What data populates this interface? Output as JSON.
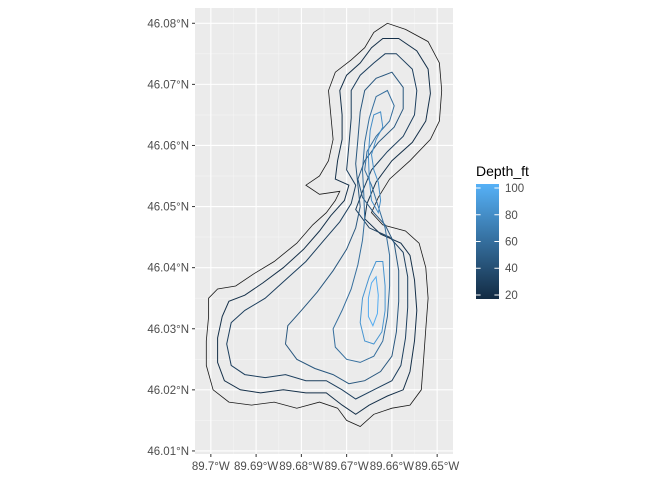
{
  "chart_data": {
    "type": "contour-map",
    "xlim": [
      -89.7035,
      -89.6465
    ],
    "ylim": [
      46.0095,
      46.0825
    ],
    "x_ticks": [
      {
        "value": -89.7,
        "label": "89.7°W"
      },
      {
        "value": -89.69,
        "label": "89.69°W"
      },
      {
        "value": -89.68,
        "label": "89.68°W"
      },
      {
        "value": -89.67,
        "label": "89.67°W"
      },
      {
        "value": -89.66,
        "label": "89.66°W"
      },
      {
        "value": -89.65,
        "label": "89.65°W"
      }
    ],
    "y_ticks": [
      {
        "value": 46.01,
        "label": "46.01°N"
      },
      {
        "value": 46.02,
        "label": "46.02°N"
      },
      {
        "value": 46.03,
        "label": "46.03°N"
      },
      {
        "value": 46.04,
        "label": "46.04°N"
      },
      {
        "value": 46.05,
        "label": "46.05°N"
      },
      {
        "value": 46.06,
        "label": "46.06°N"
      },
      {
        "value": 46.07,
        "label": "46.07°N"
      },
      {
        "value": 46.08,
        "label": "46.08°N"
      }
    ],
    "grid": true,
    "legend": {
      "title": "Depth_ft",
      "placement": "right",
      "range": [
        17,
        103
      ],
      "breaks": [
        20,
        40,
        60,
        80,
        100
      ],
      "low_color": "#132b43",
      "high_color": "#56b1f7"
    },
    "shoreline": [
      [
        -89.657,
        46.079
      ],
      [
        -89.652,
        46.077
      ],
      [
        -89.6495,
        46.0735
      ],
      [
        -89.649,
        46.069
      ],
      [
        -89.6495,
        46.064
      ],
      [
        -89.6515,
        46.061
      ],
      [
        -89.656,
        46.0575
      ],
      [
        -89.6605,
        46.0545
      ],
      [
        -89.663,
        46.0515
      ],
      [
        -89.6645,
        46.049
      ],
      [
        -89.662,
        46.047
      ],
      [
        -89.657,
        46.046
      ],
      [
        -89.654,
        46.044
      ],
      [
        -89.6525,
        46.04
      ],
      [
        -89.652,
        46.035
      ],
      [
        -89.6525,
        46.03
      ],
      [
        -89.653,
        46.025
      ],
      [
        -89.6535,
        46.02
      ],
      [
        -89.656,
        46.0175
      ],
      [
        -89.66,
        46.017
      ],
      [
        -89.664,
        46.016
      ],
      [
        -89.667,
        46.014
      ],
      [
        -89.67,
        46.015
      ],
      [
        -89.672,
        46.017
      ],
      [
        -89.676,
        46.018
      ],
      [
        -89.681,
        46.017
      ],
      [
        -89.686,
        46.018
      ],
      [
        -89.691,
        46.0175
      ],
      [
        -89.696,
        46.018
      ],
      [
        -89.6995,
        46.02
      ],
      [
        -89.701,
        46.024
      ],
      [
        -89.701,
        46.028
      ],
      [
        -89.7005,
        46.032
      ],
      [
        -89.7005,
        46.035
      ],
      [
        -89.6985,
        46.0365
      ],
      [
        -89.6945,
        46.037
      ],
      [
        -89.6905,
        46.039
      ],
      [
        -89.686,
        46.041
      ],
      [
        -89.681,
        46.044
      ],
      [
        -89.6775,
        46.047
      ],
      [
        -89.6745,
        46.049
      ],
      [
        -89.6725,
        46.051
      ],
      [
        -89.6715,
        46.0525
      ],
      [
        -89.676,
        46.052
      ],
      [
        -89.679,
        46.0535
      ],
      [
        -89.676,
        46.055
      ],
      [
        -89.674,
        46.0575
      ],
      [
        -89.673,
        46.061
      ],
      [
        -89.6735,
        46.065
      ],
      [
        -89.674,
        46.069
      ],
      [
        -89.6725,
        46.072
      ],
      [
        -89.669,
        46.074
      ],
      [
        -89.666,
        46.076
      ],
      [
        -89.664,
        46.0785
      ],
      [
        -89.661,
        46.08
      ]
    ],
    "series": [
      {
        "depth": 20,
        "polygon": [
          [
            -89.6585,
            46.0775
          ],
          [
            -89.6545,
            46.0755
          ],
          [
            -89.652,
            46.0725
          ],
          [
            -89.6515,
            46.0685
          ],
          [
            -89.6525,
            46.064
          ],
          [
            -89.6555,
            46.0605
          ],
          [
            -89.66,
            46.0575
          ],
          [
            -89.6635,
            46.054
          ],
          [
            -89.6655,
            46.0505
          ],
          [
            -89.666,
            46.048
          ],
          [
            -89.6625,
            46.0455
          ],
          [
            -89.658,
            46.044
          ],
          [
            -89.656,
            46.042
          ],
          [
            -89.655,
            46.038
          ],
          [
            -89.6545,
            46.033
          ],
          [
            -89.655,
            46.028
          ],
          [
            -89.656,
            46.023
          ],
          [
            -89.6575,
            46.02
          ],
          [
            -89.661,
            46.019
          ],
          [
            -89.665,
            46.0175
          ],
          [
            -89.668,
            46.016
          ],
          [
            -89.671,
            46.0175
          ],
          [
            -89.6745,
            46.0195
          ],
          [
            -89.679,
            46.0195
          ],
          [
            -89.684,
            46.02
          ],
          [
            -89.689,
            46.0195
          ],
          [
            -89.6935,
            46.02
          ],
          [
            -89.697,
            46.0215
          ],
          [
            -89.6985,
            46.0245
          ],
          [
            -89.6985,
            46.0285
          ],
          [
            -89.6975,
            46.032
          ],
          [
            -89.696,
            46.0345
          ],
          [
            -89.6925,
            46.0355
          ],
          [
            -89.6885,
            46.0375
          ],
          [
            -89.684,
            46.04
          ],
          [
            -89.6795,
            46.043
          ],
          [
            -89.676,
            46.046
          ],
          [
            -89.6735,
            46.0485
          ],
          [
            -89.6705,
            46.051
          ],
          [
            -89.6695,
            46.0535
          ],
          [
            -89.6725,
            46.0545
          ],
          [
            -89.672,
            46.0575
          ],
          [
            -89.671,
            46.061
          ],
          [
            -89.671,
            46.065
          ],
          [
            -89.6715,
            46.069
          ],
          [
            -89.67,
            46.0715
          ],
          [
            -89.667,
            46.0735
          ],
          [
            -89.6645,
            46.076
          ],
          [
            -89.662,
            46.0775
          ]
        ]
      },
      {
        "depth": 30,
        "polygon": [
          [
            -89.659,
            46.075
          ],
          [
            -89.6555,
            46.0725
          ],
          [
            -89.6545,
            46.069
          ],
          [
            -89.655,
            46.065
          ],
          [
            -89.6575,
            46.0615
          ],
          [
            -89.661,
            46.059
          ],
          [
            -89.6645,
            46.056
          ],
          [
            -89.6665,
            46.0525
          ],
          [
            -89.668,
            46.0495
          ],
          [
            -89.665,
            46.0465
          ],
          [
            -89.6605,
            46.045
          ],
          [
            -89.6575,
            46.0425
          ],
          [
            -89.6565,
            46.0385
          ],
          [
            -89.6565,
            46.0335
          ],
          [
            -89.657,
            46.0285
          ],
          [
            -89.658,
            46.024
          ],
          [
            -89.66,
            46.0215
          ],
          [
            -89.664,
            46.02
          ],
          [
            -89.668,
            46.0185
          ],
          [
            -89.671,
            46.02
          ],
          [
            -89.6745,
            46.0215
          ],
          [
            -89.679,
            46.0215
          ],
          [
            -89.6835,
            46.0225
          ],
          [
            -89.688,
            46.022
          ],
          [
            -89.6925,
            46.0225
          ],
          [
            -89.6955,
            46.024
          ],
          [
            -89.6965,
            46.0275
          ],
          [
            -89.6955,
            46.031
          ],
          [
            -89.6925,
            46.033
          ],
          [
            -89.688,
            46.035
          ],
          [
            -89.6835,
            46.038
          ],
          [
            -89.679,
            46.041
          ],
          [
            -89.675,
            46.0445
          ],
          [
            -89.6715,
            46.0475
          ],
          [
            -89.669,
            46.0505
          ],
          [
            -89.668,
            46.0535
          ],
          [
            -89.67,
            46.056
          ],
          [
            -89.6695,
            46.06
          ],
          [
            -89.669,
            46.0645
          ],
          [
            -89.669,
            46.069
          ],
          [
            -89.667,
            46.0715
          ],
          [
            -89.664,
            46.0735
          ],
          [
            -89.6615,
            46.075
          ]
        ]
      },
      {
        "depth": 45,
        "polygon": [
          [
            -89.66,
            46.072
          ],
          [
            -89.6575,
            46.0695
          ],
          [
            -89.6575,
            46.066
          ],
          [
            -89.6595,
            46.063
          ],
          [
            -89.663,
            46.0605
          ],
          [
            -89.666,
            46.0575
          ],
          [
            -89.6675,
            46.0545
          ],
          [
            -89.6665,
            46.0515
          ],
          [
            -89.664,
            46.049
          ],
          [
            -89.6615,
            46.047
          ],
          [
            -89.6595,
            46.044
          ],
          [
            -89.6585,
            46.0395
          ],
          [
            -89.6585,
            46.0345
          ],
          [
            -89.659,
            46.0295
          ],
          [
            -89.66,
            46.0255
          ],
          [
            -89.6625,
            46.023
          ],
          [
            -89.666,
            46.0215
          ],
          [
            -89.6695,
            46.021
          ],
          [
            -89.673,
            46.0225
          ],
          [
            -89.677,
            46.0235
          ],
          [
            -89.681,
            46.025
          ],
          [
            -89.6835,
            46.0275
          ],
          [
            -89.683,
            46.0305
          ],
          [
            -89.68,
            46.033
          ],
          [
            -89.6765,
            46.036
          ],
          [
            -89.673,
            46.0395
          ],
          [
            -89.67,
            46.043
          ],
          [
            -89.668,
            46.0465
          ],
          [
            -89.667,
            46.05
          ],
          [
            -89.6675,
            46.0535
          ],
          [
            -89.668,
            46.057
          ],
          [
            -89.6675,
            46.061
          ],
          [
            -89.667,
            46.0655
          ],
          [
            -89.666,
            46.069
          ],
          [
            -89.6635,
            46.071
          ]
        ]
      },
      {
        "depth": 60,
        "polygon": [
          [
            -89.661,
            46.069
          ],
          [
            -89.6595,
            46.0665
          ],
          [
            -89.6605,
            46.064
          ],
          [
            -89.6635,
            46.0615
          ],
          [
            -89.6655,
            46.059
          ],
          [
            -89.666,
            46.056
          ],
          [
            -89.6645,
            46.0535
          ],
          [
            -89.663,
            46.05
          ],
          [
            -89.6615,
            46.0465
          ],
          [
            -89.6605,
            46.042
          ],
          [
            -89.6605,
            46.037
          ],
          [
            -89.661,
            46.032
          ],
          [
            -89.662,
            46.028
          ],
          [
            -89.664,
            46.0255
          ],
          [
            -89.667,
            46.0245
          ],
          [
            -89.67,
            46.025
          ],
          [
            -89.6725,
            46.027
          ],
          [
            -89.673,
            46.03
          ],
          [
            -89.671,
            46.033
          ],
          [
            -89.669,
            46.0365
          ],
          [
            -89.6675,
            46.0405
          ],
          [
            -89.6665,
            46.0445
          ],
          [
            -89.666,
            46.048
          ],
          [
            -89.6662,
            46.052
          ],
          [
            -89.6665,
            46.056
          ],
          [
            -89.666,
            46.0605
          ],
          [
            -89.665,
            46.0645
          ],
          [
            -89.6635,
            46.068
          ]
        ]
      },
      {
        "depth": 80,
        "polygon": [
          [
            -89.6625,
            46.0655
          ],
          [
            -89.662,
            46.063
          ],
          [
            -89.6635,
            46.061
          ],
          [
            -89.6645,
            46.0585
          ],
          [
            -89.664,
            46.056
          ],
          [
            -89.663,
            46.054
          ],
          [
            -89.6625,
            46.051
          ],
          [
            -89.663,
            46.049
          ],
          [
            -89.6645,
            46.051
          ],
          [
            -89.665,
            46.0545
          ],
          [
            -89.6652,
            46.0585
          ],
          [
            -89.6648,
            46.0625
          ],
          [
            -89.664,
            46.065
          ]
        ]
      },
      {
        "depth": 85,
        "polygon": [
          [
            -89.662,
            46.041
          ],
          [
            -89.6615,
            46.037
          ],
          [
            -89.6615,
            46.033
          ],
          [
            -89.6622,
            46.0295
          ],
          [
            -89.664,
            46.0275
          ],
          [
            -89.666,
            46.028
          ],
          [
            -89.667,
            46.031
          ],
          [
            -89.6665,
            46.035
          ],
          [
            -89.665,
            46.0385
          ],
          [
            -89.6635,
            46.041
          ]
        ]
      },
      {
        "depth": 100,
        "polygon": [
          [
            -89.6635,
            46.0385
          ],
          [
            -89.663,
            46.0355
          ],
          [
            -89.6632,
            46.0325
          ],
          [
            -89.6642,
            46.0305
          ],
          [
            -89.6652,
            46.032
          ],
          [
            -89.6652,
            46.035
          ],
          [
            -89.6645,
            46.0375
          ]
        ]
      }
    ]
  }
}
